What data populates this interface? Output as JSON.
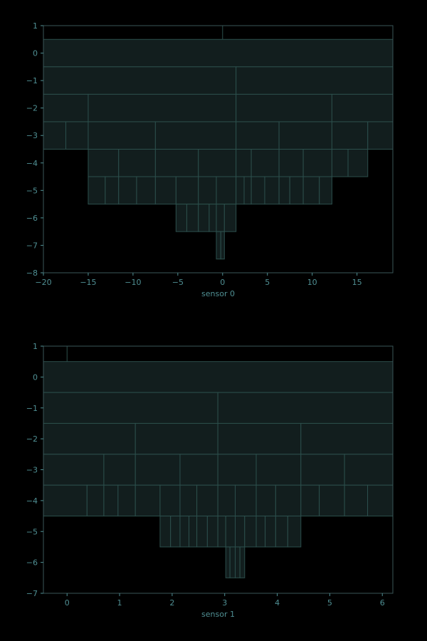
{
  "colors": {
    "background": "#000000",
    "cell_fill": "#121e1e",
    "cell_edge": "#2c4f4c",
    "text": "#4f8f93",
    "frame": "#3a5658"
  },
  "chart_data": [
    {
      "type": "icicle",
      "xlabel": "sensor 0",
      "ylabel": "",
      "xlim": [
        -20,
        19
      ],
      "ylim": [
        -8,
        1
      ],
      "xticks": [
        -20,
        -15,
        -10,
        -5,
        0,
        5,
        10,
        15
      ],
      "yticks": [
        1,
        0,
        -1,
        -2,
        -3,
        -4,
        -5,
        -6,
        -7,
        -8
      ],
      "grid": false,
      "marks": [
        {
          "x": 0,
          "y0": 0.5,
          "y1": 1
        }
      ],
      "levels": [
        {
          "y": 0,
          "bounds": [
            -20,
            19
          ]
        },
        {
          "y": -1,
          "bounds": [
            -20,
            1.5,
            19
          ]
        },
        {
          "y": -2,
          "bounds": [
            -20,
            -15,
            1.5,
            12.2,
            19
          ]
        },
        {
          "y": -3,
          "bounds": [
            -20,
            -17.5,
            -15,
            -7.5,
            1.5,
            6.3,
            12.2,
            16.2,
            19
          ]
        },
        {
          "y": -4,
          "bounds": [
            -15,
            -11.6,
            -7.5,
            -2.7,
            1.5,
            3.2,
            6.3,
            9,
            12.2,
            14,
            16.2
          ]
        },
        {
          "y": -5,
          "bounds": [
            -15,
            -13.1,
            -11.6,
            -9.6,
            -7.5,
            -5.2,
            -2.7,
            -0.7,
            1.5,
            2.4,
            3.2,
            4.7,
            6.3,
            7.5,
            9,
            10.8,
            12.2
          ]
        },
        {
          "y": -6,
          "bounds": [
            -5.2,
            -4,
            -2.7,
            -1.5,
            -0.7,
            0.2,
            1.5
          ]
        },
        {
          "y": -7,
          "bounds": [
            -0.7,
            -0.2,
            0.2
          ]
        }
      ]
    },
    {
      "type": "icicle",
      "xlabel": "sensor 1",
      "ylabel": "",
      "xlim": [
        -0.45,
        6.2
      ],
      "ylim": [
        -7,
        1
      ],
      "xticks": [
        0,
        1,
        2,
        3,
        4,
        5,
        6
      ],
      "yticks": [
        1,
        0,
        -1,
        -2,
        -3,
        -4,
        -5,
        -6,
        -7
      ],
      "grid": false,
      "marks": [
        {
          "x": 0,
          "y0": 0.5,
          "y1": 1
        }
      ],
      "levels": [
        {
          "y": 0,
          "bounds": [
            -0.45,
            6.2
          ]
        },
        {
          "y": -1,
          "bounds": [
            -0.45,
            2.87,
            6.2
          ]
        },
        {
          "y": -2,
          "bounds": [
            -0.45,
            1.3,
            2.87,
            4.45,
            6.2
          ]
        },
        {
          "y": -3,
          "bounds": [
            -0.45,
            0.7,
            1.3,
            2.15,
            2.87,
            3.6,
            4.45,
            5.28,
            6.2
          ]
        },
        {
          "y": -4,
          "bounds": [
            -0.45,
            0.38,
            0.7,
            0.97,
            1.3,
            1.77,
            2.15,
            2.47,
            2.87,
            3.2,
            3.6,
            3.97,
            4.45,
            4.8,
            5.28,
            5.72,
            6.2
          ]
        },
        {
          "y": -5,
          "bounds": [
            1.77,
            1.97,
            2.15,
            2.32,
            2.47,
            2.67,
            2.87,
            3.02,
            3.2,
            3.38,
            3.6,
            3.77,
            3.97,
            4.2,
            4.45
          ]
        },
        {
          "y": -6,
          "bounds": [
            3.02,
            3.1,
            3.2,
            3.29,
            3.38
          ]
        }
      ]
    }
  ]
}
